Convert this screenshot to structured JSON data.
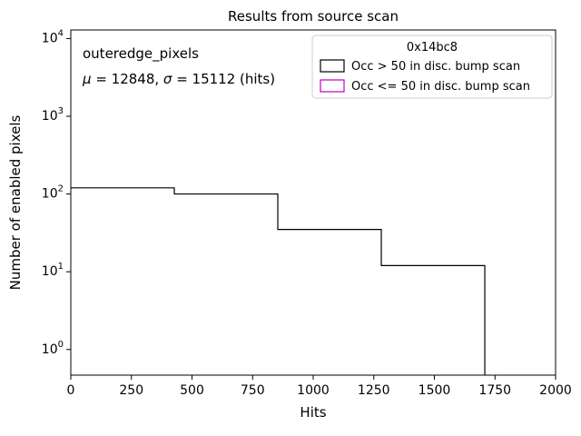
{
  "figure": {
    "title": "Results from source scan",
    "xlabel": "Hits",
    "ylabel": "Number of enabled pixels",
    "annotation_line1": "outeredge_pixels",
    "annotation_line2": {
      "mu_symbol": "μ",
      "mu_rest": " = 12848, ",
      "sigma_symbol": "σ",
      "sigma_rest": " = 15112 (hits)"
    },
    "legend": {
      "title": "0x14bc8",
      "entries": [
        {
          "label": "Occ > 50 in disc. bump scan",
          "color": "#000000"
        },
        {
          "label": "Occ <= 50 in disc. bump scan",
          "color": "#bf00bf"
        }
      ]
    }
  },
  "chart_data": {
    "type": "step-histogram",
    "title": "Results from source scan",
    "xlabel": "Hits",
    "ylabel": "Number of enabled pixels",
    "xlim": [
      0,
      2000
    ],
    "x_ticks": [
      0,
      250,
      500,
      750,
      1000,
      1250,
      1500,
      1750,
      2000
    ],
    "y_scale": "log",
    "y_tick_exponents": [
      0,
      1,
      2,
      3,
      4
    ],
    "ylog_range": [
      -0.33,
      4.11
    ],
    "grid": false,
    "legend_position": "upper right",
    "legend_title": "0x14bc8",
    "annotations": [
      "outeredge_pixels",
      "μ = 12848, σ = 15112 (hits)"
    ],
    "stats": {
      "mu_hits": 12848,
      "sigma_hits": 15112
    },
    "series": [
      {
        "name": "Occ > 50 in disc. bump scan",
        "color": "#000000",
        "bin_edges": [
          0,
          427,
          854,
          1281,
          1708
        ],
        "counts": [
          120,
          100,
          35,
          12
        ]
      },
      {
        "name": "Occ <= 50 in disc. bump scan",
        "color": "#bf00bf",
        "bin_edges": [],
        "counts": []
      }
    ]
  }
}
